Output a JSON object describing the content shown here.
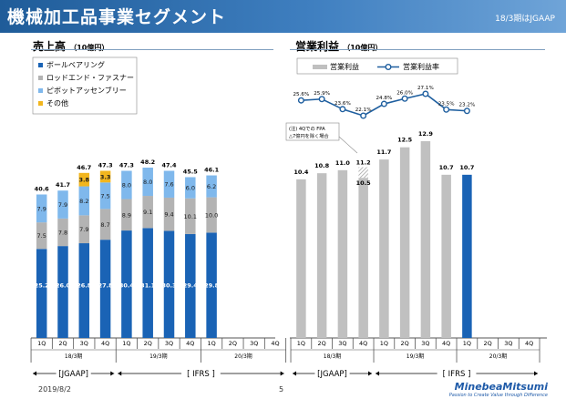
{
  "header": {
    "title": "機械加工品事業セグメント",
    "standard_note": "18/3期はJGAAP"
  },
  "left_chart": {
    "title": "売上高",
    "unit": "（10億円）"
  },
  "right_chart": {
    "title": "営業利益",
    "unit": "（10億円）"
  },
  "footer": {
    "date": "2019/8/2",
    "page": "5"
  },
  "logo": {
    "name": "MinebeaMitsumi",
    "tagline": "Passion to Create Value through Difference"
  },
  "colors": {
    "ball_bearing": "#1a63b5",
    "rod_end": "#b3b3b3",
    "pivot": "#7fb8ec",
    "other": "#f2b61e",
    "op_bar": "#c0c0c0",
    "op_bar_latest": "#1a63b5",
    "margin_line": "#1f5f9f"
  },
  "chart_data": [
    {
      "type": "bar",
      "stacked": true,
      "title": "売上高",
      "unit": "（10億円）",
      "quarters": [
        "1Q",
        "2Q",
        "3Q",
        "4Q",
        "1Q",
        "2Q",
        "3Q",
        "4Q",
        "1Q",
        "2Q",
        "3Q",
        "4Q"
      ],
      "periods": [
        {
          "label": "18/3期",
          "from": 0,
          "to": 3
        },
        {
          "label": "19/3期",
          "from": 4,
          "to": 7
        },
        {
          "label": "20/3期",
          "from": 8,
          "to": 11
        }
      ],
      "standards": [
        {
          "label": "[JGAAP]",
          "from": 0,
          "to": 3
        },
        {
          "label": "[ IFRS ]",
          "from": 4,
          "to": 11
        }
      ],
      "series": [
        {
          "name": "ボールベアリング",
          "color_key": "ball_bearing",
          "values": [
            25.2,
            26.0,
            26.8,
            27.8,
            30.4,
            31.1,
            30.3,
            29.4,
            29.8,
            null,
            null,
            null
          ],
          "labels": [
            "25.2",
            "26.0",
            "26.8",
            "27.8",
            "30.4",
            "31.1",
            "30.3",
            "29.4",
            "29.8",
            "",
            "",
            ""
          ]
        },
        {
          "name": "ロッドエンド・ファスナー",
          "color_key": "rod_end",
          "values": [
            7.5,
            7.8,
            7.9,
            8.7,
            8.9,
            9.1,
            9.4,
            10.1,
            10.0,
            null,
            null,
            null
          ],
          "labels": [
            "7.5",
            "7.8",
            "7.9",
            "8.7",
            "8.9",
            "9.1",
            "9.4",
            "10.1",
            "10.0",
            "",
            "",
            ""
          ]
        },
        {
          "name": "ピボットアッセンブリー",
          "color_key": "pivot",
          "values": [
            7.9,
            7.9,
            8.2,
            7.5,
            8.0,
            8.0,
            7.6,
            6.0,
            6.2,
            null,
            null,
            null
          ],
          "labels": [
            "7.9",
            "7.9",
            "8.2",
            "7.5",
            "8.0",
            "8.0",
            "7.6",
            "6.0",
            "6.2",
            "",
            "",
            ""
          ]
        },
        {
          "name": "その他",
          "color_key": "other",
          "values": [
            0,
            0,
            3.8,
            3.3,
            0,
            0,
            0,
            0,
            0,
            null,
            null,
            null
          ],
          "labels": [
            "",
            "",
            "3.8",
            "3.3",
            "",
            "",
            "",
            "",
            "",
            "",
            "",
            ""
          ]
        }
      ],
      "totals": [
        40.6,
        41.7,
        46.7,
        47.3,
        47.3,
        48.2,
        47.4,
        45.5,
        46.1,
        null,
        null,
        null
      ],
      "total_labels": [
        "40.6",
        "41.7",
        "46.7",
        "47.3",
        "47.3",
        "48.2",
        "47.4",
        "45.5",
        "46.1",
        "",
        "",
        ""
      ],
      "ylim": [
        0,
        52
      ]
    },
    {
      "type": "bar+line",
      "title": "営業利益",
      "unit": "（10億円）",
      "quarters": [
        "1Q",
        "2Q",
        "3Q",
        "4Q",
        "1Q",
        "2Q",
        "3Q",
        "4Q",
        "1Q",
        "2Q",
        "3Q",
        "4Q"
      ],
      "periods": [
        {
          "label": "18/3期",
          "from": 0,
          "to": 3
        },
        {
          "label": "19/3期",
          "from": 4,
          "to": 7
        },
        {
          "label": "20/3期",
          "from": 8,
          "to": 11
        }
      ],
      "standards": [
        {
          "label": "[JGAAP]",
          "from": 0,
          "to": 3
        },
        {
          "label": "[ IFRS ]",
          "from": 4,
          "to": 11
        }
      ],
      "series": [
        {
          "name": "営業利益",
          "kind": "bar",
          "values": [
            10.4,
            10.8,
            11.0,
            11.2,
            11.7,
            12.5,
            12.9,
            10.7,
            10.7,
            null,
            null,
            null
          ],
          "labels": [
            "10.4",
            "10.8",
            "11.0",
            "11.2",
            "11.7",
            "12.5",
            "12.9",
            "10.7",
            "10.7",
            "",
            "",
            ""
          ],
          "hatched_index": 3,
          "hatched_value": 10.5,
          "hatched_label": "10.5",
          "highlight_index": 8
        },
        {
          "name": "営業利益率",
          "kind": "line",
          "unit": "%",
          "values": [
            25.6,
            25.9,
            23.6,
            22.1,
            24.8,
            26.0,
            27.1,
            23.5,
            23.2,
            null,
            null,
            null
          ],
          "labels": [
            "25.6%",
            "25.9%",
            "23.6%",
            "22.1%",
            "24.8%",
            "26.0%",
            "27.1%",
            "23.5%",
            "23.2%",
            "",
            "",
            ""
          ]
        }
      ],
      "annotation": "(注) 4Qでの FPA\n△7億円を除く場合",
      "ylim": [
        0,
        14
      ],
      "margin_range": [
        18,
        30
      ]
    }
  ]
}
